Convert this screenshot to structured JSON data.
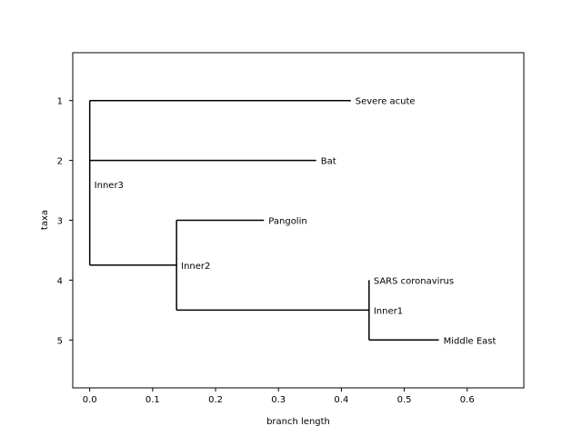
{
  "chart_data": {
    "type": "tree",
    "xlabel": "branch length",
    "ylabel": "taxa",
    "xlim": [
      -0.027,
      0.69
    ],
    "ylim": [
      5.8,
      0.2
    ],
    "xticks": [
      0.0,
      0.1,
      0.2,
      0.3,
      0.4,
      0.5,
      0.6
    ],
    "xtick_labels": [
      "0.0",
      "0.1",
      "0.2",
      "0.3",
      "0.4",
      "0.5",
      "0.6"
    ],
    "yticks": [
      1,
      2,
      3,
      4,
      5
    ],
    "ytick_labels": [
      "1",
      "2",
      "3",
      "4",
      "5"
    ],
    "line_color": "#000000",
    "nodes": [
      {
        "id": "inner3",
        "label": "Inner3",
        "x": 0.0,
        "y": 2.25,
        "label_y": 2.4
      },
      {
        "id": "severe",
        "label": "Severe acute",
        "x": 0.415,
        "y": 1,
        "parent": "inner3"
      },
      {
        "id": "bat",
        "label": "Bat",
        "x": 0.36,
        "y": 2,
        "parent": "inner3"
      },
      {
        "id": "inner2",
        "label": "Inner2",
        "x": 0.138,
        "y": 3.75,
        "parent": "inner3"
      },
      {
        "id": "pangolin",
        "label": "Pangolin",
        "x": 0.277,
        "y": 3,
        "parent": "inner2"
      },
      {
        "id": "inner1",
        "label": "Inner1",
        "x": 0.444,
        "y": 4.5,
        "parent": "inner2"
      },
      {
        "id": "sars",
        "label": "SARS coronavirus",
        "x": 0.444,
        "y": 4,
        "parent": "inner1"
      },
      {
        "id": "mideast",
        "label": "Middle East",
        "x": 0.555,
        "y": 5,
        "parent": "inner1"
      }
    ]
  }
}
